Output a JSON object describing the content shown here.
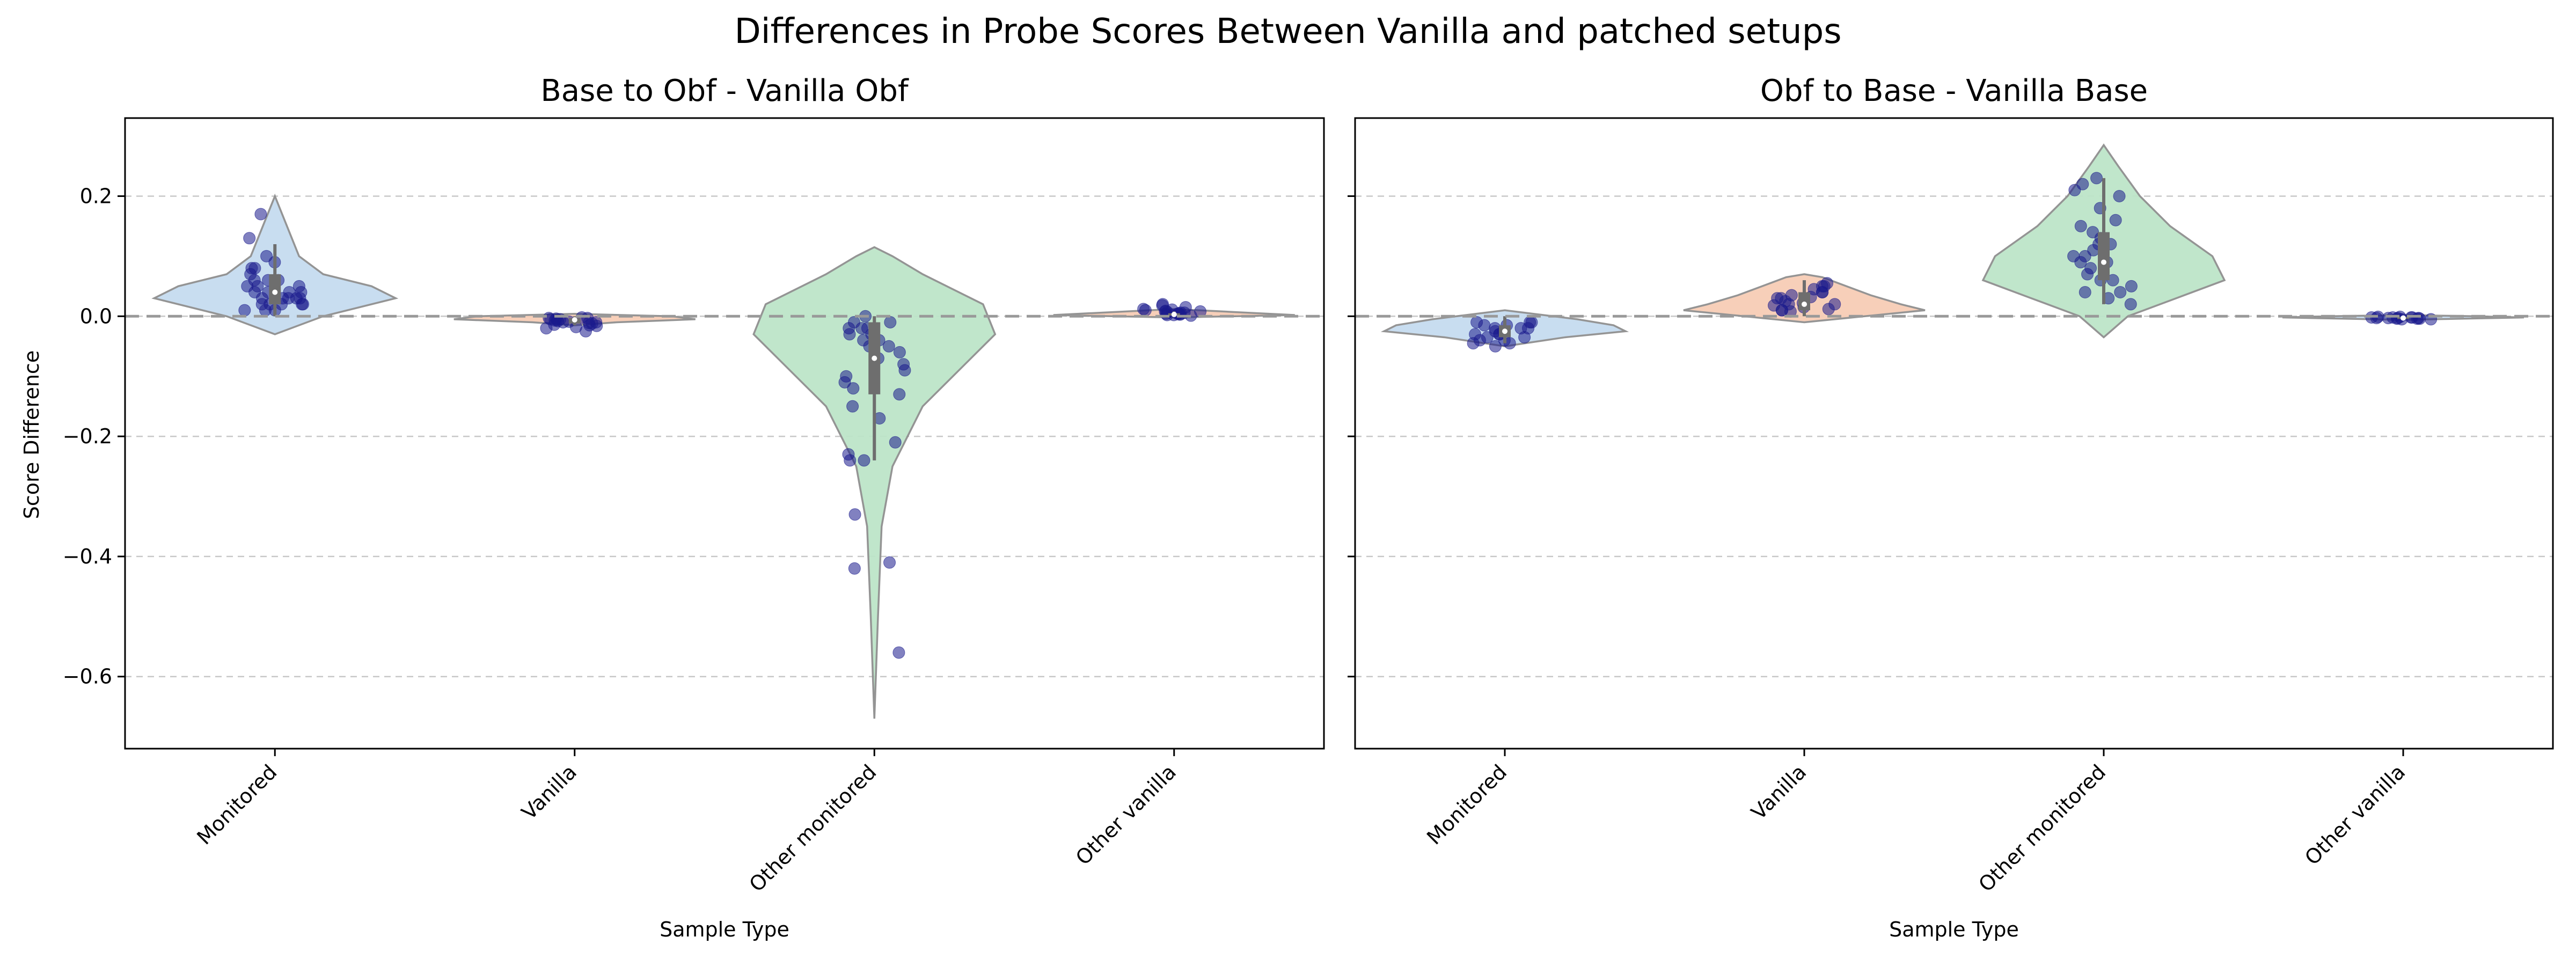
{
  "figure": {
    "title": "Differences in Probe Scores Between Vanilla and patched setups",
    "ylabel": "Score Difference"
  },
  "chart_data": [
    {
      "type": "violin",
      "title": "Base to Obf - Vanilla Obf",
      "xlabel": "Sample Type",
      "ylabel": "Score Difference",
      "categories": [
        "Monitored",
        "Vanilla",
        "Other monitored",
        "Other vanilla"
      ],
      "ylim": [
        -0.72,
        0.33
      ],
      "yticks": [
        0.2,
        0.0,
        -0.2,
        -0.4,
        -0.6
      ],
      "ytick_labels": [
        "0.2",
        "0.0",
        "−0.2",
        "−0.4",
        "−0.6"
      ],
      "grid": true,
      "reference_line": 0.0,
      "colors": {
        "fills": [
          "#c6dcf0",
          "#f7cdb6",
          "#bde5c9",
          "#f7cdb6"
        ],
        "points": "#1a1a8c",
        "box": "#6e6e6e",
        "reference": "#999999"
      },
      "violins": [
        {
          "category": "Monitored",
          "min": -0.03,
          "max": 0.2,
          "profile": [
            [
              -0.03,
              0.0
            ],
            [
              0.0,
              0.4
            ],
            [
              0.02,
              0.8
            ],
            [
              0.03,
              1.0
            ],
            [
              0.05,
              0.8
            ],
            [
              0.07,
              0.4
            ],
            [
              0.1,
              0.2
            ],
            [
              0.15,
              0.1
            ],
            [
              0.2,
              0.0
            ]
          ],
          "q1": 0.02,
          "median": 0.04,
          "q3": 0.07,
          "whisker": [
            0.0,
            0.12
          ]
        },
        {
          "category": "Vanilla",
          "min": -0.015,
          "max": 0.004,
          "profile": [
            [
              -0.015,
              0.0
            ],
            [
              -0.01,
              0.35
            ],
            [
              -0.005,
              1.0
            ],
            [
              0.0,
              0.8
            ],
            [
              0.004,
              0.0
            ]
          ],
          "q1": -0.012,
          "median": -0.006,
          "q3": -0.003,
          "whisker": [
            -0.015,
            0.0
          ]
        },
        {
          "category": "Other monitored",
          "min": -0.67,
          "max": 0.115,
          "profile": [
            [
              -0.67,
              0.0
            ],
            [
              -0.5,
              0.03
            ],
            [
              -0.35,
              0.06
            ],
            [
              -0.25,
              0.15
            ],
            [
              -0.15,
              0.4
            ],
            [
              -0.08,
              0.75
            ],
            [
              -0.03,
              1.0
            ],
            [
              0.02,
              0.9
            ],
            [
              0.07,
              0.4
            ],
            [
              0.1,
              0.15
            ],
            [
              0.115,
              0.0
            ]
          ],
          "q1": -0.13,
          "median": -0.07,
          "q3": -0.01,
          "whisker": [
            -0.24,
            0.0
          ]
        },
        {
          "category": "Other vanilla",
          "min": -0.002,
          "max": 0.012,
          "profile": [
            [
              -0.002,
              0.0
            ],
            [
              0.002,
              1.0
            ],
            [
              0.007,
              0.5
            ],
            [
              0.012,
              0.0
            ]
          ],
          "q1": 0.001,
          "median": 0.003,
          "q3": 0.005,
          "whisker": [
            -0.001,
            0.008
          ]
        }
      ],
      "points": [
        {
          "category": "Monitored",
          "values": [
            0.03,
            0.02,
            0.05,
            0.06,
            0.04,
            0.08,
            0.1,
            0.01,
            0.03,
            0.05,
            0.07,
            0.02,
            0.04,
            0.06,
            0.09,
            0.17,
            0.13,
            0.04,
            0.03,
            0.02,
            0.01,
            0.05,
            0.08,
            0.03,
            0.02,
            0.04,
            0.06,
            0.01,
            0.03,
            0.02
          ]
        },
        {
          "category": "Vanilla",
          "values": [
            -0.005,
            -0.01,
            -0.015,
            -0.02,
            -0.008,
            -0.003,
            -0.012,
            -0.006,
            -0.018,
            -0.025,
            -0.004,
            -0.009,
            -0.014,
            -0.002,
            -0.007,
            -0.011,
            -0.016,
            -0.005,
            -0.003,
            -0.01
          ]
        },
        {
          "category": "Other monitored",
          "values": [
            0.0,
            -0.01,
            -0.02,
            -0.05,
            -0.04,
            -0.1,
            -0.12,
            -0.08,
            -0.05,
            -0.03,
            -0.02,
            -0.06,
            -0.09,
            -0.11,
            -0.13,
            -0.15,
            -0.17,
            -0.21,
            -0.23,
            -0.24,
            -0.24,
            -0.33,
            -0.41,
            -0.42,
            -0.56,
            -0.01,
            -0.03,
            -0.07,
            -0.02,
            -0.04
          ]
        },
        {
          "category": "Other vanilla",
          "values": [
            0.003,
            0.006,
            0.01,
            0.002,
            0.008,
            0.012,
            0.005,
            0.015,
            0.02,
            0.004,
            0.007,
            0.009,
            0.001,
            0.011,
            0.003,
            0.006,
            0.018,
            0.004,
            0.002,
            0.008
          ]
        }
      ]
    },
    {
      "type": "violin",
      "title": "Obf to Base - Vanilla Base",
      "xlabel": "Sample Type",
      "categories": [
        "Monitored",
        "Vanilla",
        "Other monitored",
        "Other vanilla"
      ],
      "ylim": [
        -0.72,
        0.33
      ],
      "yticks": [
        0.2,
        0.0,
        -0.2,
        -0.4,
        -0.6
      ],
      "grid": true,
      "reference_line": 0.0,
      "colors": {
        "fills": [
          "#c6dcf0",
          "#f7cdb6",
          "#bde5c9",
          "#c6dcf0"
        ],
        "points": "#1a1a8c",
        "box": "#6e6e6e",
        "reference": "#999999"
      },
      "violins": [
        {
          "category": "Monitored",
          "min": -0.05,
          "max": 0.01,
          "profile": [
            [
              -0.05,
              0.0
            ],
            [
              -0.035,
              0.5
            ],
            [
              -0.025,
              1.0
            ],
            [
              -0.015,
              0.9
            ],
            [
              -0.005,
              0.6
            ],
            [
              0.0,
              0.4
            ],
            [
              0.01,
              0.0
            ]
          ],
          "q1": -0.035,
          "median": -0.025,
          "q3": -0.015,
          "whisker": [
            -0.045,
            0.0
          ]
        },
        {
          "category": "Vanilla",
          "min": -0.01,
          "max": 0.07,
          "profile": [
            [
              -0.01,
              0.0
            ],
            [
              0.0,
              0.5
            ],
            [
              0.01,
              1.0
            ],
            [
              0.02,
              0.8
            ],
            [
              0.035,
              0.55
            ],
            [
              0.05,
              0.35
            ],
            [
              0.065,
              0.15
            ],
            [
              0.07,
              0.0
            ]
          ],
          "q1": 0.01,
          "median": 0.02,
          "q3": 0.04,
          "whisker": [
            0.0,
            0.06
          ]
        },
        {
          "category": "Other monitored",
          "min": -0.035,
          "max": 0.285,
          "profile": [
            [
              -0.035,
              0.0
            ],
            [
              0.0,
              0.2
            ],
            [
              0.03,
              0.6
            ],
            [
              0.06,
              1.0
            ],
            [
              0.1,
              0.9
            ],
            [
              0.15,
              0.55
            ],
            [
              0.2,
              0.3
            ],
            [
              0.25,
              0.12
            ],
            [
              0.285,
              0.0
            ]
          ],
          "q1": 0.06,
          "median": 0.09,
          "q3": 0.14,
          "whisker": [
            0.02,
            0.23
          ]
        },
        {
          "category": "Other vanilla",
          "min": -0.006,
          "max": 0.002,
          "profile": [
            [
              -0.006,
              0.0
            ],
            [
              -0.004,
              0.5
            ],
            [
              -0.002,
              1.0
            ],
            [
              0.0,
              0.6
            ],
            [
              0.002,
              0.0
            ]
          ],
          "q1": -0.004,
          "median": -0.003,
          "q3": -0.001,
          "whisker": [
            -0.006,
            0.0
          ]
        }
      ],
      "points": [
        {
          "category": "Monitored",
          "values": [
            -0.01,
            -0.02,
            -0.03,
            -0.04,
            -0.025,
            -0.015,
            -0.035,
            -0.045,
            -0.02,
            -0.03,
            -0.01,
            -0.04,
            -0.025,
            -0.05,
            -0.015,
            -0.03,
            -0.02,
            -0.035,
            -0.01,
            -0.045
          ]
        },
        {
          "category": "Vanilla",
          "values": [
            0.01,
            0.02,
            0.03,
            0.04,
            0.05,
            0.015,
            0.025,
            0.035,
            0.045,
            0.055,
            0.01,
            0.02,
            0.03,
            0.04,
            0.012,
            0.022,
            0.032,
            0.05,
            0.008,
            0.018
          ]
        },
        {
          "category": "Other monitored",
          "values": [
            0.23,
            0.22,
            0.2,
            0.18,
            0.15,
            0.13,
            0.12,
            0.1,
            0.09,
            0.08,
            0.07,
            0.06,
            0.05,
            0.04,
            0.03,
            0.02,
            0.11,
            0.14,
            0.16,
            0.21,
            0.09,
            0.06,
            0.04,
            0.12,
            0.1
          ]
        },
        {
          "category": "Other vanilla",
          "values": [
            -0.002,
            -0.003,
            -0.004,
            -0.001,
            -0.005,
            -0.003,
            -0.002,
            -0.004,
            -0.001,
            -0.003,
            -0.002,
            -0.005,
            -0.004,
            -0.002,
            -0.003
          ]
        }
      ]
    }
  ]
}
